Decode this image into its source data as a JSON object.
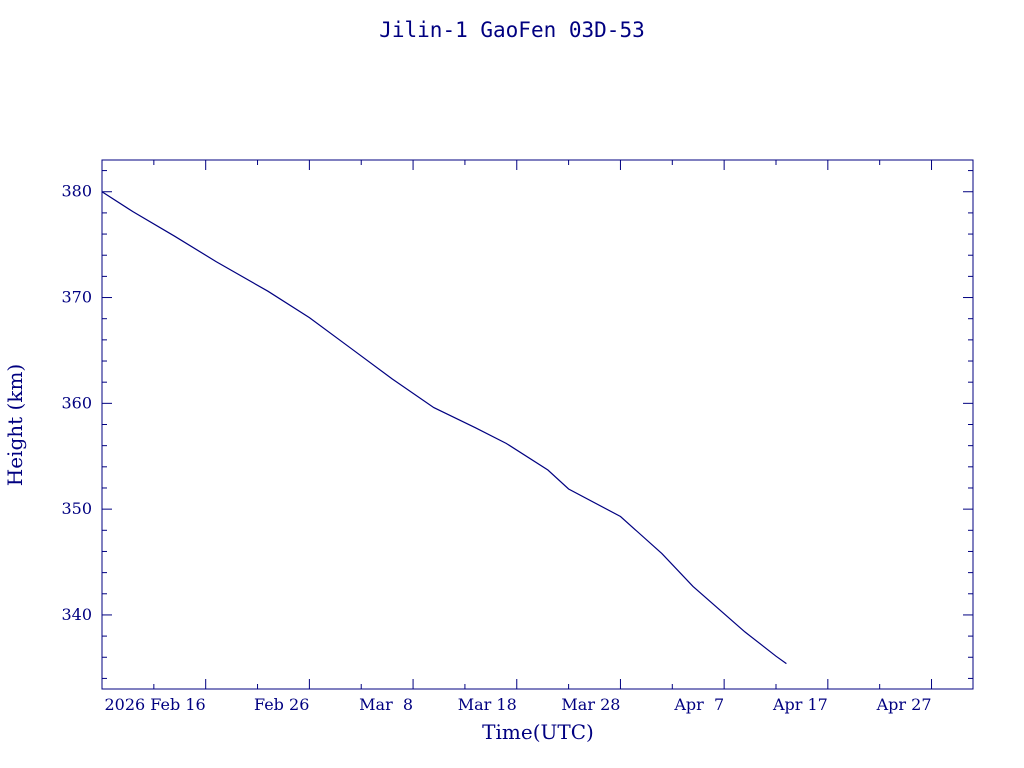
{
  "chart_data": {
    "type": "line",
    "title": "Jilin-1 GaoFen 03D-53",
    "xlabel": "Time(UTC)",
    "ylabel": "Height (km)",
    "xlim": [
      "2026-02-06",
      "2026-05-01"
    ],
    "ylim": [
      333,
      383
    ],
    "y_ticks": [
      340,
      350,
      360,
      370,
      380
    ],
    "x_ticks": [
      {
        "date": "2026-02-16",
        "label": "2026 Feb 16"
      },
      {
        "date": "2026-02-26",
        "label": "Feb 26"
      },
      {
        "date": "2026-03-08",
        "label": "Mar  8"
      },
      {
        "date": "2026-03-18",
        "label": "Mar 18"
      },
      {
        "date": "2026-03-28",
        "label": "Mar 28"
      },
      {
        "date": "2026-04-07",
        "label": "Apr  7"
      },
      {
        "date": "2026-04-17",
        "label": "Apr 17"
      },
      {
        "date": "2026-04-27",
        "label": "Apr 27"
      }
    ],
    "grid": false,
    "color": "#000080",
    "series": [
      {
        "x": [
          "2026-02-06",
          "2026-02-09",
          "2026-02-13",
          "2026-02-17",
          "2026-02-22",
          "2026-02-26",
          "2026-03-02",
          "2026-03-06",
          "2026-03-10",
          "2026-03-14",
          "2026-03-17",
          "2026-03-21",
          "2026-03-23",
          "2026-03-28",
          "2026-04-01",
          "2026-04-04",
          "2026-04-09",
          "2026-04-12",
          "2026-04-13"
        ],
        "y": [
          380.0,
          378.1,
          375.8,
          373.4,
          370.6,
          368.1,
          365.2,
          362.3,
          359.6,
          357.7,
          356.2,
          353.7,
          351.9,
          349.3,
          345.8,
          342.7,
          338.4,
          336.1,
          335.4
        ]
      }
    ]
  }
}
